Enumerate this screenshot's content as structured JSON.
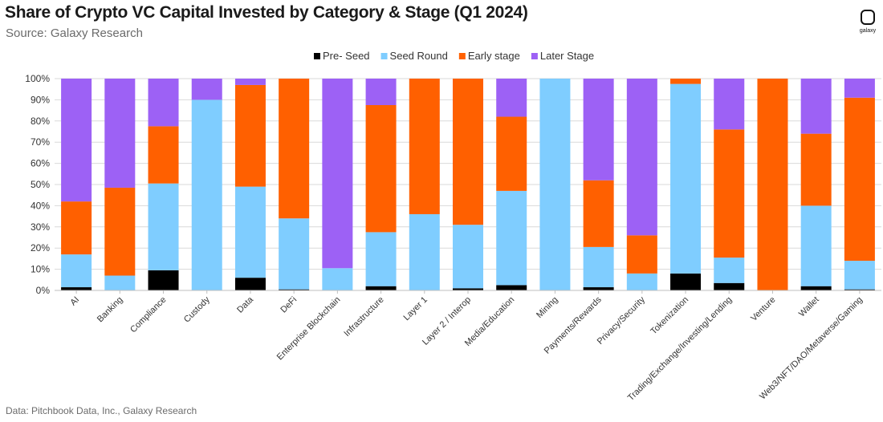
{
  "header": {
    "title": "Share of Crypto VC Capital Invested by Category & Stage (Q1 2024)",
    "subtitle": "Source: Galaxy Research",
    "logo_text": "galaxy"
  },
  "footer": {
    "note": "Data: Pitchbook Data, Inc., Galaxy Research"
  },
  "chart_data": {
    "type": "bar",
    "stacked": true,
    "percent": true,
    "categories": [
      "AI",
      "Banking",
      "Compliance",
      "Custody",
      "Data",
      "DeFi",
      "Enterprise Blockchain",
      "Infrastructure",
      "Layer 1",
      "Layer 2 / Interop",
      "Media/Education",
      "Mining",
      "Payments/Rewards",
      "Privacy/Security",
      "Tokenization",
      "Trading/Exchange/Investing/Lending",
      "Venture",
      "Wallet",
      "Web3/NFT/DAO/Metaverse/Gaming"
    ],
    "series": [
      {
        "name": "Pre- Seed",
        "color": "#000000",
        "values": [
          1.5,
          0,
          9.5,
          0,
          6,
          0.5,
          0,
          2,
          0,
          1,
          2.5,
          0,
          1.5,
          0,
          8,
          3.5,
          0,
          2,
          0.5
        ]
      },
      {
        "name": "Seed Round",
        "color": "#7fcdff",
        "values": [
          15.5,
          7,
          41,
          90,
          43,
          33.5,
          10.5,
          25.5,
          36,
          30,
          44.5,
          100,
          19,
          8,
          89.5,
          12,
          0,
          38,
          13.5
        ]
      },
      {
        "name": "Early stage",
        "color": "#ff6000",
        "values": [
          25,
          41.5,
          27,
          0,
          48,
          66,
          0,
          60,
          64,
          69,
          35,
          0,
          31.5,
          18,
          2.5,
          60.5,
          100,
          34,
          77
        ]
      },
      {
        "name": "Later Stage",
        "color": "#9d61f5",
        "values": [
          58,
          51.5,
          22.5,
          10,
          3,
          0,
          89.5,
          12.5,
          0,
          0,
          18,
          0,
          48,
          74,
          0,
          24,
          0,
          26,
          9
        ]
      }
    ],
    "y_ticks": [
      "0%",
      "10%",
      "20%",
      "30%",
      "40%",
      "50%",
      "60%",
      "70%",
      "80%",
      "90%",
      "100%"
    ],
    "ylim": [
      0,
      100
    ],
    "legend_position": "top-center",
    "grid": "horizontal"
  }
}
